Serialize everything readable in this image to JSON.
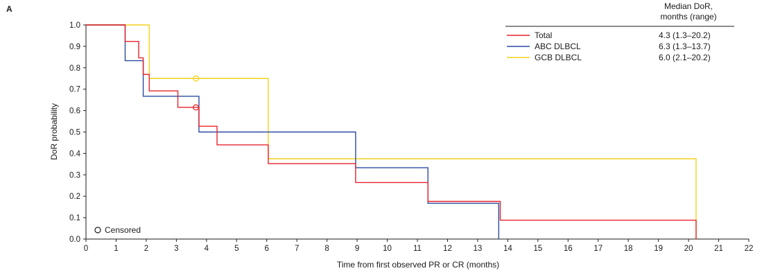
{
  "panel_label": "A",
  "chart_data": {
    "type": "line",
    "step": true,
    "xlabel": "Time from first observed PR or CR (months)",
    "ylabel": "DoR probability",
    "xlim": [
      0,
      22
    ],
    "ylim": [
      0,
      1.0
    ],
    "x_ticks": [
      "0",
      "1",
      "2",
      "3",
      "4",
      "5",
      "6",
      "7",
      "8",
      "9",
      "10",
      "11",
      "12",
      "13",
      "14",
      "15",
      "16",
      "17",
      "18",
      "19",
      "20",
      "21",
      "22"
    ],
    "y_ticks": [
      "0.0",
      "0.1",
      "0.2",
      "0.3",
      "0.4",
      "0.5",
      "0.6",
      "0.7",
      "0.8",
      "0.9",
      "1.0"
    ],
    "grid": false,
    "legend_position": "top-right",
    "legend_header": [
      "Median DoR,",
      "months (range)"
    ],
    "censored_label": "Censored",
    "series": [
      {
        "name": "Total",
        "color": "#e8232a",
        "median_label": "4.3 (1.3–20.2)",
        "x": [
          0,
          1.3,
          1.3,
          1.75,
          1.75,
          1.9,
          1.9,
          2.1,
          2.1,
          3.05,
          3.05,
          3.75,
          3.75,
          4.35,
          4.35,
          6.05,
          6.05,
          8.95,
          8.95,
          11.35,
          11.35,
          13.75,
          13.75,
          20.25,
          20.25
        ],
        "y": [
          1.0,
          1.0,
          0.923,
          0.923,
          0.846,
          0.846,
          0.769,
          0.769,
          0.692,
          0.692,
          0.615,
          0.615,
          0.527,
          0.527,
          0.44,
          0.44,
          0.352,
          0.352,
          0.264,
          0.264,
          0.176,
          0.176,
          0.088,
          0.088,
          0.0
        ],
        "censored": [
          [
            3.65,
            0.615
          ]
        ]
      },
      {
        "name": "ABC DLBCL",
        "color": "#2b4aa0",
        "median_label": "6.3 (1.3–13.7)",
        "x": [
          0,
          1.3,
          1.3,
          1.9,
          1.9,
          3.75,
          3.75,
          8.95,
          8.95,
          11.35,
          11.35,
          13.7,
          13.7
        ],
        "y": [
          1.0,
          1.0,
          0.833,
          0.833,
          0.667,
          0.667,
          0.5,
          0.5,
          0.333,
          0.333,
          0.167,
          0.167,
          0.0
        ],
        "censored": []
      },
      {
        "name": "GCB DLBCL",
        "color": "#f3d21a",
        "median_label": "6.0 (2.1–20.2)",
        "x": [
          0,
          2.1,
          2.1,
          6.05,
          6.05,
          20.25,
          20.25
        ],
        "y": [
          1.0,
          1.0,
          0.75,
          0.75,
          0.375,
          0.375,
          0.0
        ],
        "censored": [
          [
            3.65,
            0.75
          ]
        ]
      }
    ]
  }
}
